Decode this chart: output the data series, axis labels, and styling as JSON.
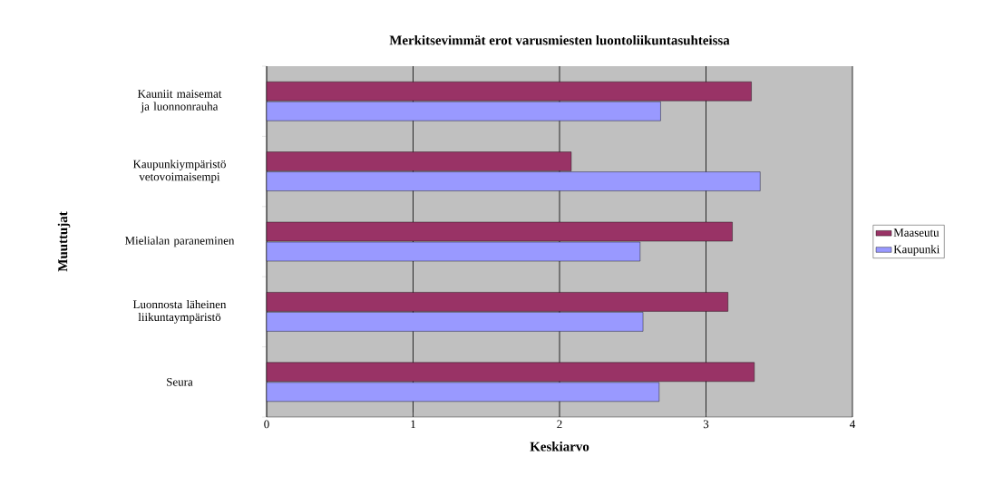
{
  "chart_data": {
    "type": "bar",
    "orientation": "horizontal",
    "title": "Merkitsevimmät erot varusmiesten luontoliikuntasuhteissa",
    "xlabel": "Keskiarvo",
    "ylabel": "Muuttujat",
    "categories": [
      "Kauniit maisemat ja luonnonrauha",
      "Kaupunkiympäristö vetovoimaisempi",
      "Mielialan paraneminen",
      "Luonnosta läheinen liikuntaympäristö",
      "Seura"
    ],
    "series": [
      {
        "name": "Maaseutu",
        "color": "#993366",
        "values": [
          3.31,
          2.08,
          3.18,
          3.15,
          3.33
        ]
      },
      {
        "name": "Kaupunki",
        "color": "#9999ff",
        "values": [
          2.69,
          3.37,
          2.55,
          2.57,
          2.68
        ]
      }
    ],
    "xlim": [
      0,
      4
    ],
    "xticks": [
      0,
      1,
      2,
      3,
      4
    ],
    "grid": "x",
    "legend": "right"
  }
}
